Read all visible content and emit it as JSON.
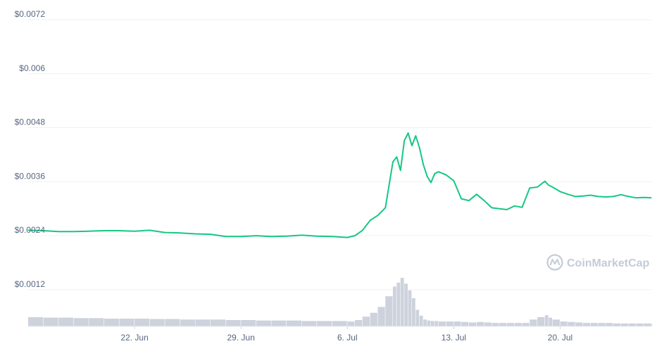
{
  "chart_data": {
    "type": "line",
    "watermark": "CoinMarketCap",
    "colors": {
      "price_line": "#16c784",
      "volume_bar": "#cdd2dc",
      "grid": "#eef0f3",
      "tick_text": "#58667e",
      "watermark": "#c4ccd8"
    },
    "y_ticks": [
      "$0.0072",
      "$0.006",
      "$0.0048",
      "$0.0036",
      "$0.0024",
      "$0.0012"
    ],
    "y_tick_values": [
      0.0072,
      0.006,
      0.0048,
      0.0036,
      0.0024,
      0.0012
    ],
    "ylim": [
      0.00065,
      0.0072
    ],
    "x_ticks": [
      "22. Jun",
      "29. Jun",
      "6. Jul",
      "13. Jul",
      "20. Jul"
    ],
    "x_tick_days": [
      "2020-06-22",
      "2020-06-29",
      "2020-07-06",
      "2020-07-13",
      "2020-07-20"
    ],
    "xlim": [
      "2020-06-15",
      "2020-07-26"
    ],
    "grid": true,
    "legend": "none",
    "series": [
      {
        "values_kind": "price",
        "x": [
          "2020-06-15",
          "2020-06-16",
          "2020-06-17",
          "2020-06-18",
          "2020-06-19",
          "2020-06-20",
          "2020-06-21",
          "2020-06-22",
          "2020-06-23",
          "2020-06-24",
          "2020-06-25",
          "2020-06-26",
          "2020-06-27",
          "2020-06-28",
          "2020-06-29",
          "2020-06-30",
          "2020-07-01",
          "2020-07-02",
          "2020-07-03",
          "2020-07-04",
          "2020-07-05",
          "2020-07-06",
          "2020-07-06 12:00",
          "2020-07-07",
          "2020-07-07 12:00",
          "2020-07-08",
          "2020-07-08 12:00",
          "2020-07-09",
          "2020-07-09 06:00",
          "2020-07-09 12:00",
          "2020-07-09 18:00",
          "2020-07-10",
          "2020-07-10 06:00",
          "2020-07-10 12:00",
          "2020-07-10 18:00",
          "2020-07-11",
          "2020-07-11 06:00",
          "2020-07-11 12:00",
          "2020-07-11 18:00",
          "2020-07-12",
          "2020-07-12 12:00",
          "2020-07-13",
          "2020-07-13 12:00",
          "2020-07-14",
          "2020-07-14 12:00",
          "2020-07-15",
          "2020-07-15 12:00",
          "2020-07-16",
          "2020-07-16 12:00",
          "2020-07-17",
          "2020-07-17 12:00",
          "2020-07-18",
          "2020-07-18 12:00",
          "2020-07-19",
          "2020-07-19 06:00",
          "2020-07-19 12:00",
          "2020-07-20",
          "2020-07-20 12:00",
          "2020-07-21",
          "2020-07-21 12:00",
          "2020-07-22",
          "2020-07-22 12:00",
          "2020-07-23",
          "2020-07-23 12:00",
          "2020-07-24",
          "2020-07-24 12:00",
          "2020-07-25",
          "2020-07-25 12:00",
          "2020-07-26"
        ],
        "values": [
          0.00252,
          0.00251,
          0.00249,
          0.00249,
          0.0025,
          0.00251,
          0.00251,
          0.0025,
          0.00252,
          0.00247,
          0.00246,
          0.00244,
          0.00243,
          0.00238,
          0.00238,
          0.0024,
          0.00238,
          0.00239,
          0.00241,
          0.00239,
          0.00238,
          0.00236,
          0.0024,
          0.00252,
          0.00274,
          0.00285,
          0.00302,
          0.00404,
          0.00415,
          0.00385,
          0.00451,
          0.00468,
          0.0044,
          0.00462,
          0.00435,
          0.00398,
          0.00372,
          0.00358,
          0.00378,
          0.00382,
          0.00375,
          0.00362,
          0.00322,
          0.00318,
          0.00332,
          0.00318,
          0.00302,
          0.003,
          0.00298,
          0.00306,
          0.00303,
          0.00346,
          0.00348,
          0.00361,
          0.00352,
          0.00348,
          0.00338,
          0.00332,
          0.00327,
          0.00328,
          0.0033,
          0.00327,
          0.00326,
          0.00327,
          0.00331,
          0.00327,
          0.00324,
          0.00325,
          0.00324
        ]
      },
      {
        "values_kind": "volume",
        "values": [
          0.19,
          0.18,
          0.18,
          0.17,
          0.17,
          0.16,
          0.16,
          0.16,
          0.15,
          0.15,
          0.14,
          0.14,
          0.14,
          0.13,
          0.13,
          0.12,
          0.12,
          0.12,
          0.11,
          0.11,
          0.11,
          0.1,
          0.13,
          0.2,
          0.28,
          0.4,
          0.62,
          0.82,
          0.9,
          1.0,
          0.88,
          0.74,
          0.58,
          0.34,
          0.22,
          0.14,
          0.12,
          0.11,
          0.11,
          0.1,
          0.1,
          0.1,
          0.09,
          0.08,
          0.09,
          0.08,
          0.07,
          0.07,
          0.07,
          0.07,
          0.07,
          0.14,
          0.19,
          0.23,
          0.18,
          0.14,
          0.1,
          0.09,
          0.08,
          0.07,
          0.07,
          0.07,
          0.07,
          0.06,
          0.06,
          0.06,
          0.06,
          0.06,
          0.06
        ]
      }
    ]
  }
}
